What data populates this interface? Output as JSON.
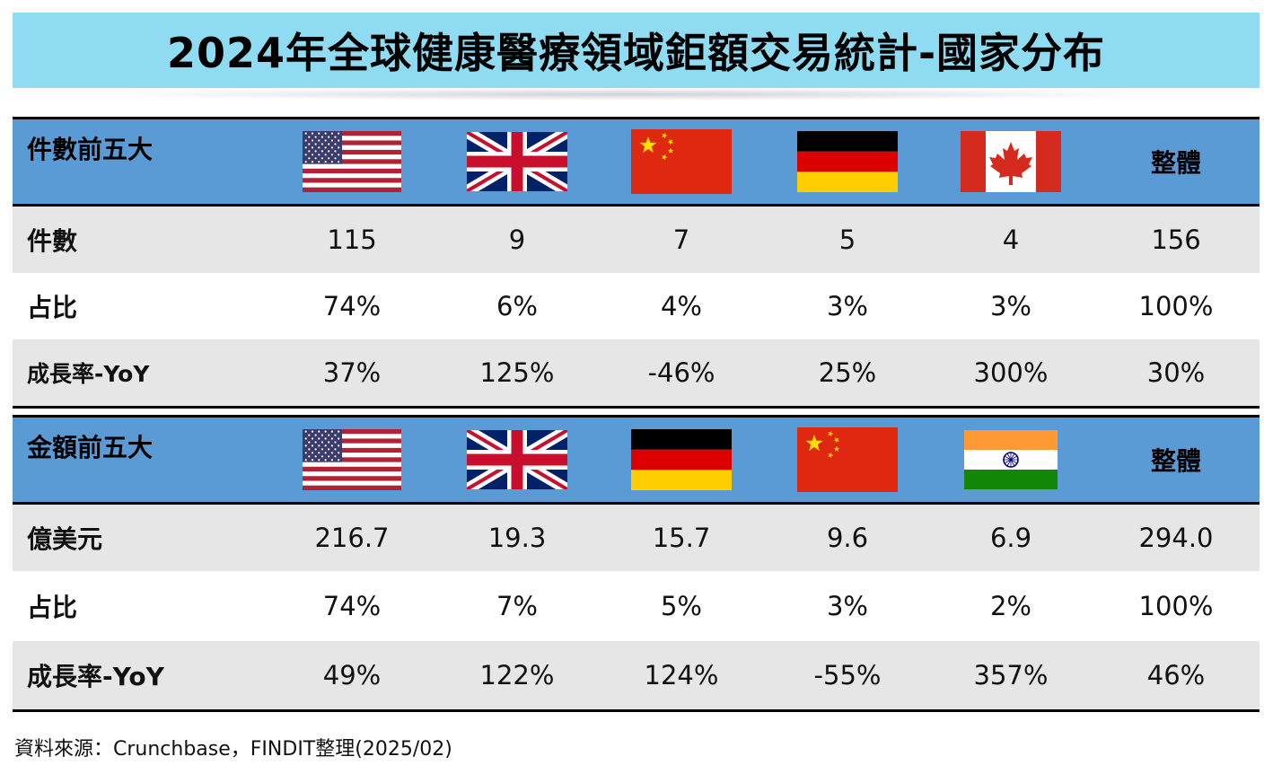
{
  "title": "2024年全球健康醫療領域鉅額交易統計-國家分布",
  "chart_data": [
    {
      "type": "table",
      "header_label": "件數前五大",
      "total_label": "整體",
      "columns": [
        {
          "flag": "us-flag-icon"
        },
        {
          "flag": "uk-flag-icon"
        },
        {
          "flag": "china-flag-icon"
        },
        {
          "flag": "germany-flag-icon"
        },
        {
          "flag": "canada-flag-icon"
        }
      ],
      "rows": [
        {
          "label": "件數",
          "values": [
            "115",
            "9",
            "7",
            "5",
            "4",
            "156"
          ]
        },
        {
          "label": "占比",
          "values": [
            "74%",
            "6%",
            "4%",
            "3%",
            "3%",
            "100%"
          ]
        },
        {
          "label": "成長率-YoY",
          "values": [
            "37%",
            "125%",
            "-46%",
            "25%",
            "300%",
            "30%"
          ]
        }
      ]
    },
    {
      "type": "table",
      "header_label": "金額前五大",
      "total_label": "整體",
      "columns": [
        {
          "flag": "us-flag-icon"
        },
        {
          "flag": "uk-flag-icon"
        },
        {
          "flag": "germany-flag-icon"
        },
        {
          "flag": "china-flag-icon"
        },
        {
          "flag": "india-flag-icon"
        }
      ],
      "rows": [
        {
          "label": "億美元",
          "values": [
            "216.7",
            "19.3",
            "15.7",
            "9.6",
            "6.9",
            "294.0"
          ]
        },
        {
          "label": "占比",
          "values": [
            "74%",
            "7%",
            "5%",
            "3%",
            "2%",
            "100%"
          ]
        },
        {
          "label": "成長率-YoY",
          "values": [
            "49%",
            "122%",
            "124%",
            "-55%",
            "357%",
            "46%"
          ]
        }
      ]
    }
  ],
  "source": "資料來源：Crunchbase，FINDIT整理(2025/02)",
  "colors": {
    "title_bg": "#8fdcf2",
    "header_bg": "#5b9bd5",
    "row_shade": "#e6e6e6"
  }
}
